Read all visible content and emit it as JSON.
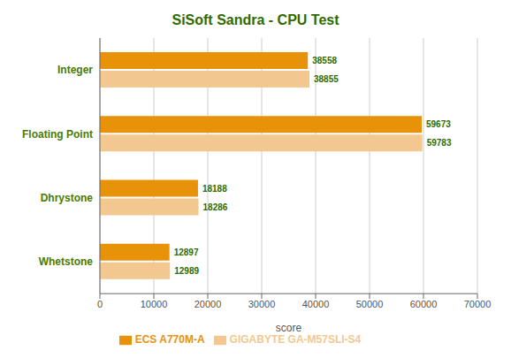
{
  "chart_data": {
    "type": "bar",
    "orientation": "horizontal",
    "title": "SiSoft Sandra - CPU Test",
    "categories": [
      "Integer",
      "Floating Point",
      "Dhrystone",
      "Whetstone"
    ],
    "series": [
      {
        "name": "ECS A770M-A",
        "color": "#E8920A",
        "values": [
          38558,
          59673,
          18188,
          12897
        ]
      },
      {
        "name": "GIGABYTE GA-M57SLI-S4",
        "color": "#F2C890",
        "values": [
          38855,
          59783,
          18286,
          12989
        ]
      }
    ],
    "xlabel": "score",
    "xlim": [
      0,
      70000
    ],
    "xticks": [
      0,
      10000,
      20000,
      30000,
      40000,
      50000,
      60000,
      70000
    ],
    "grid": true,
    "data_labels": true,
    "legend": "bottom"
  }
}
